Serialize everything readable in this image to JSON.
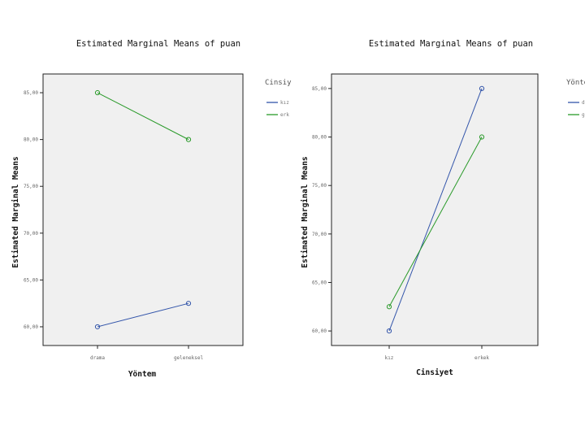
{
  "chart_data": [
    {
      "type": "line",
      "title": "Estimated Marginal Means of puan",
      "xlabel": "Yöntem",
      "ylabel": "Estimated Marginal Means",
      "categories": [
        "drama",
        "geleneksel"
      ],
      "ylim": [
        58,
        87
      ],
      "yticks": [
        "60,00",
        "65,00",
        "70,00",
        "75,00",
        "80,00",
        "85,00"
      ],
      "legend_title": "Cinsiy",
      "legend_position": "right",
      "grid": false,
      "series": [
        {
          "name": "kız",
          "values": [
            60.0,
            62.5
          ],
          "color": "#3355aa"
        },
        {
          "name": "erk",
          "values": [
            85.0,
            80.0
          ],
          "color": "#2a9a2a"
        }
      ]
    },
    {
      "type": "line",
      "title": "Estimated Marginal Means of puan",
      "xlabel": "Cinsiyet",
      "ylabel": "Estimated Marginal Means",
      "categories": [
        "kız",
        "erkek"
      ],
      "ylim": [
        58.5,
        86.5
      ],
      "yticks": [
        "60,00",
        "65,00",
        "70,00",
        "75,00",
        "80,00",
        "85,00"
      ],
      "legend_title": "Yönte",
      "legend_position": "right",
      "grid": false,
      "series": [
        {
          "name": "drama",
          "values": [
            60.0,
            85.0
          ],
          "color": "#3355aa"
        },
        {
          "name": "geleneksel",
          "values": [
            62.5,
            80.0
          ],
          "color": "#2a9a2a"
        }
      ]
    }
  ]
}
